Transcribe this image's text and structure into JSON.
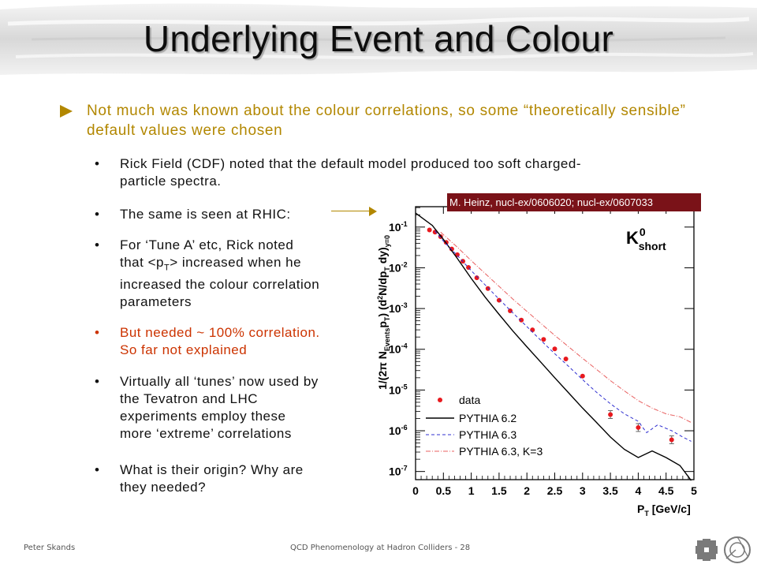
{
  "slide": {
    "title": "Underlying Event and Colour",
    "main_bullet": "Not much was known about the colour correlations, so some “theoretically sensible” default values were chosen",
    "sub_bullets": [
      {
        "text_lines": [
          "Rick Field (CDF) noted that the default model produced too soft charged-",
          "particle spectra."
        ],
        "color": "#111111"
      },
      {
        "text_lines": [
          "The same is seen at RHIC:"
        ],
        "color": "#111111"
      },
      {
        "text_lines": [
          "For ‘Tune A’ etc, Rick noted",
          "that <p",
          "T",
          "> increased when he",
          "increased the colour correlation",
          "parameters"
        ],
        "color": "#111111"
      },
      {
        "text_lines": [
          "But needed ~ 100% correlation.",
          "So far not explained"
        ],
        "color": "#cc3300"
      },
      {
        "text_lines": [
          "Virtually all ‘tunes’ now used by",
          "the Tevatron and LHC",
          "experiments employ these",
          "more ‘extreme’ correlations"
        ],
        "color": "#111111"
      },
      {
        "text_lines": [
          "What is their origin? Why are",
          "they needed?"
        ],
        "color": "#111111"
      }
    ],
    "bullet_glyph": "•",
    "accent_color": "#b28700",
    "highlight_color": "#cc3300",
    "reference_label": "M. Heinz, nucl-ex/0606020; nucl-ex/0607033"
  },
  "footer": {
    "author": "Peter Skands",
    "course": "QCD Phenomenology at Hadron Colliders - 28"
  },
  "icons": {
    "bullet_arrow": "triangle-right-icon",
    "logos": [
      "fermilab-logo",
      "cern-logo"
    ]
  },
  "chart_data": {
    "type": "scatter",
    "ylabel_parts": [
      "1/(2π N",
      "Events",
      "p",
      "T",
      ") (d",
      "2",
      "N/dp",
      "T",
      " dy)",
      "y=0"
    ],
    "xlabel_parts": [
      "P",
      "T",
      " [GeV/c]"
    ],
    "particle_label": [
      "K",
      "0",
      "short"
    ],
    "x_ticks": [
      "0",
      "0.5",
      "1",
      "1.5",
      "2",
      "2.5",
      "3",
      "3.5",
      "4",
      "4.5",
      "5"
    ],
    "y_ticks": [
      {
        "base": "10",
        "exp": "-1"
      },
      {
        "base": "10",
        "exp": "-2"
      },
      {
        "base": "10",
        "exp": "-3"
      },
      {
        "base": "10",
        "exp": "-4"
      },
      {
        "base": "10",
        "exp": "-5"
      },
      {
        "base": "10",
        "exp": "-6"
      },
      {
        "base": "10",
        "exp": "-7"
      }
    ],
    "xlim": [
      0,
      5
    ],
    "ylim_log10": [
      -7.2,
      -0.5
    ],
    "log_y": true,
    "legend": [
      "data",
      "PYTHIA 6.2",
      "PYTHIA 6.3",
      "PYTHIA 6.3, K=3"
    ],
    "legend_position": "bottom-left",
    "series": [
      {
        "name": "data",
        "style": "markers",
        "color": "#e8191e",
        "x": [
          0.25,
          0.35,
          0.45,
          0.55,
          0.65,
          0.75,
          0.85,
          0.95,
          1.1,
          1.3,
          1.5,
          1.7,
          1.9,
          2.1,
          2.3,
          2.5,
          2.7,
          3.0,
          3.5,
          4.0,
          4.6
        ],
        "y": [
          0.085,
          0.075,
          0.058,
          0.042,
          0.029,
          0.021,
          0.0145,
          0.0102,
          0.0057,
          0.0031,
          0.0016,
          0.00088,
          0.00052,
          0.0003,
          0.000175,
          0.000102,
          5.8e-05,
          2.2e-05,
          2.5e-06,
          1.2e-06,
          6e-07
        ]
      },
      {
        "name": "PYTHIA 6.2",
        "style": "solid",
        "color": "#000000",
        "x": [
          0,
          0.3,
          0.5,
          0.75,
          1.0,
          1.25,
          1.5,
          1.75,
          2.0,
          2.25,
          2.5,
          2.75,
          3.0,
          3.25,
          3.5,
          3.75,
          4.0,
          4.25,
          4.5,
          4.75,
          4.95
        ],
        "y": [
          0.22,
          0.11,
          0.05,
          0.017,
          0.0055,
          0.0019,
          0.00072,
          0.00028,
          0.000115,
          4.8e-05,
          2e-05,
          8.5e-06,
          3.6e-06,
          1.6e-06,
          7e-07,
          3.5e-07,
          2.2e-07,
          3.2e-07,
          2.2e-07,
          1.4e-07,
          6e-08
        ]
      },
      {
        "name": "PYTHIA 6.3",
        "style": "dashed",
        "color": "#3030d0",
        "x": [
          0.35,
          0.5,
          0.75,
          1.0,
          1.25,
          1.5,
          1.75,
          2.0,
          2.25,
          2.5,
          2.75,
          3.0,
          3.25,
          3.5,
          3.75,
          4.0,
          4.15,
          4.35,
          4.6,
          4.8,
          4.95
        ],
        "y": [
          0.08,
          0.045,
          0.02,
          0.0085,
          0.0038,
          0.0017,
          0.00078,
          0.00036,
          0.000165,
          7.8e-05,
          3.8e-05,
          1.8e-05,
          8.8e-06,
          4.6e-06,
          2.6e-06,
          1.7e-06,
          9e-07,
          1.4e-06,
          1e-06,
          7e-07,
          5.5e-07
        ]
      },
      {
        "name": "PYTHIA 6.3, K=3",
        "style": "dashdot",
        "color": "#e86060",
        "x": [
          0.45,
          0.75,
          1.0,
          1.25,
          1.5,
          1.75,
          2.0,
          2.25,
          2.5,
          2.75,
          3.0,
          3.25,
          3.5,
          3.75,
          4.0,
          4.25,
          4.5,
          4.75,
          4.95
        ],
        "y": [
          0.075,
          0.032,
          0.015,
          0.0072,
          0.0035,
          0.0017,
          0.00085,
          0.00043,
          0.00022,
          0.000115,
          6e-05,
          3.2e-05,
          1.7e-05,
          9.5e-06,
          5.5e-06,
          3.6e-06,
          2.6e-06,
          2.2e-06,
          1.6e-06
        ]
      }
    ]
  }
}
